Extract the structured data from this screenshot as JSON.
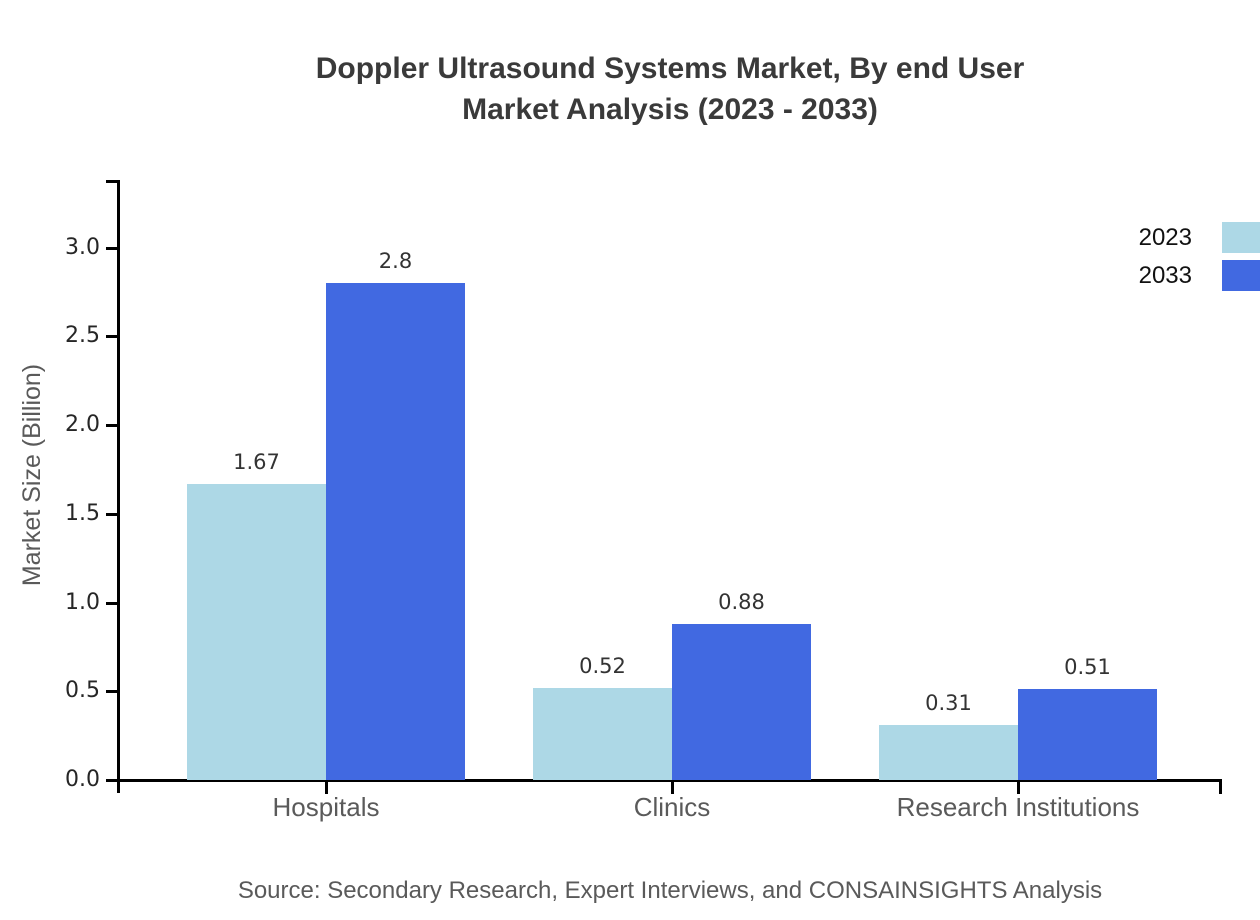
{
  "chart_data": {
    "type": "bar",
    "title_lines": [
      "Doppler Ultrasound Systems Market, By end User",
      "Market Analysis (2023 - 2033)"
    ],
    "categories": [
      "Hospitals",
      "Clinics",
      "Research Institutions"
    ],
    "series": [
      {
        "name": "2023",
        "color": "#ADD8E6",
        "values": [
          1.67,
          0.52,
          0.31
        ],
        "labels": [
          "1.67",
          "0.52",
          "0.31"
        ]
      },
      {
        "name": "2033",
        "color": "#4169E1",
        "values": [
          2.8,
          0.88,
          0.51
        ],
        "labels": [
          "2.8",
          "0.88",
          "0.51"
        ]
      }
    ],
    "xlabel": "",
    "ylabel": "Market Size (Billion)",
    "ylim": [
      0,
      3.39
    ],
    "y_ticks": [
      "0.0",
      "0.5",
      "1.0",
      "1.5",
      "2.0",
      "2.5",
      "3.0"
    ],
    "grid": false,
    "legend_position": "upper-right-outside, swatches clipped at right canvas edge",
    "source": "Source: Secondary Research, Expert Interviews, and CONSAINSIGHTS Analysis"
  },
  "colors": {
    "background": "#ffffff",
    "axis": "#000000",
    "title_text": "#3a3a3a",
    "tick_text": "#262626",
    "value_text": "#333333",
    "muted_text": "#5a5a5a",
    "legend_text": "#111111",
    "series_2023": "#ADD8E6",
    "series_2033": "#4169E1"
  }
}
